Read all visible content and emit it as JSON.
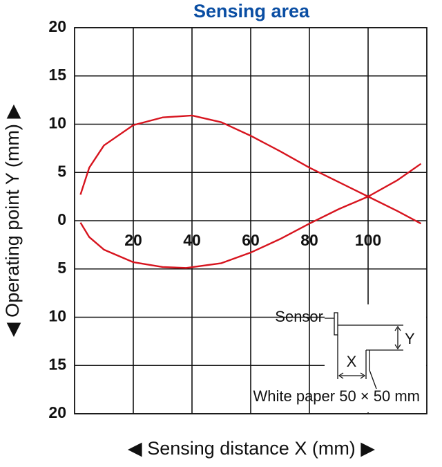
{
  "chart_data": {
    "type": "line",
    "title": "Sensing area",
    "x_label": "◀ Sensing distance X (mm) ▶",
    "y_label": "◀ Operating point Y (mm) ▶",
    "xlim": [
      0,
      120
    ],
    "xticks": [
      20,
      40,
      60,
      80,
      100
    ],
    "ylim": [
      -20,
      20
    ],
    "yticks": [
      {
        "value": -20,
        "label": "20"
      },
      {
        "value": -15,
        "label": "15"
      },
      {
        "value": -10,
        "label": "10"
      },
      {
        "value": -5,
        "label": "5"
      },
      0,
      5,
      10,
      15,
      20
    ],
    "grid": true,
    "series": [
      {
        "color": "#d7141e",
        "x": [
          2,
          5,
          10,
          20,
          30,
          40,
          50,
          60,
          70,
          80,
          90,
          100,
          110,
          118
        ],
        "values": [
          2.7,
          5.5,
          7.8,
          9.9,
          10.7,
          10.9,
          10.2,
          8.8,
          7.2,
          5.5,
          4,
          2.5,
          1,
          -0.3
        ]
      },
      {
        "color": "#d7141e",
        "x": [
          2,
          5,
          10,
          20,
          30,
          38,
          50,
          60,
          70,
          80,
          90,
          100,
          110,
          118
        ],
        "values": [
          -0.2,
          -1.7,
          -3,
          -4.3,
          -4.8,
          -4.9,
          -4.4,
          -3.3,
          -1.9,
          -0.3,
          1.2,
          2.5,
          4.2,
          5.9
        ]
      }
    ],
    "annotations": {
      "sensor": "Sensor",
      "x": "X",
      "y": "Y",
      "paper": "White paper 50 × 50 mm"
    }
  }
}
